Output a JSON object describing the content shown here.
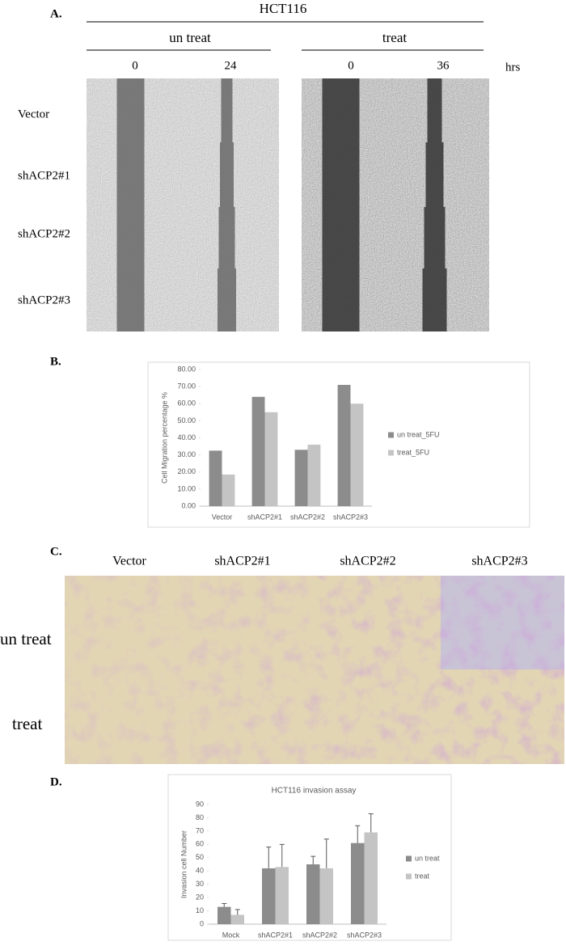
{
  "panel_labels": [
    "A.",
    "B.",
    "C.",
    "D."
  ],
  "panel_a": {
    "cell_line": "HCT116",
    "groups": [
      "un treat",
      "treat"
    ],
    "timepoints": [
      "0",
      "24",
      "0",
      "36"
    ],
    "time_unit": "hrs",
    "rows": [
      "Vector",
      "shACP2#1",
      "shACP2#2",
      "shACP2#3"
    ]
  },
  "panel_c": {
    "columns": [
      "Vector",
      "shACP2#1",
      "shACP2#2",
      "shACP2#3"
    ],
    "rows": [
      "un treat",
      "treat"
    ]
  },
  "chart_data": [
    {
      "type": "bar",
      "y_label": "Cell Migration percentage %",
      "categories": [
        "Vector",
        "shACP2#1",
        "shACP2#2",
        "shACP2#3"
      ],
      "series": [
        {
          "name": "un treat_5FU",
          "color": "#8c8c8c",
          "values": [
            32.5,
            64,
            33,
            71
          ]
        },
        {
          "name": "treat_5FU",
          "color": "#c4c4c4",
          "values": [
            18.5,
            55,
            36,
            60
          ]
        }
      ],
      "ylim": [
        0,
        80
      ],
      "yticks": [
        {
          "value": 0,
          "label": "0.00"
        },
        {
          "value": 10,
          "label": "10.00"
        },
        {
          "value": 20,
          "label": "20.00"
        },
        {
          "value": 30,
          "label": "30.00"
        },
        {
          "value": 40,
          "label": "40.00"
        },
        {
          "value": 50,
          "label": "50.00"
        },
        {
          "value": 60,
          "label": "60.00"
        },
        {
          "value": 70,
          "label": "70.00"
        },
        {
          "value": 80,
          "label": "80.00"
        }
      ],
      "legend": "right"
    },
    {
      "type": "bar",
      "title": "HCT116 invasion assay",
      "y_label": "Invasion cell Number",
      "categories": [
        "Mock",
        "shACP2#1",
        "shACP2#2",
        "shACP2#3"
      ],
      "series": [
        {
          "name": "un treat",
          "color": "#8c8c8c",
          "values": [
            13,
            42,
            45,
            61
          ],
          "errors": [
            2.5,
            16,
            6,
            13
          ]
        },
        {
          "name": "treat",
          "color": "#c4c4c4",
          "values": [
            7,
            43,
            42,
            69
          ],
          "errors": [
            4,
            17,
            22,
            14
          ]
        }
      ],
      "ylim": [
        0,
        90
      ],
      "yticks": [
        0,
        10,
        20,
        30,
        40,
        50,
        60,
        70,
        80,
        90
      ],
      "legend": "right"
    }
  ]
}
